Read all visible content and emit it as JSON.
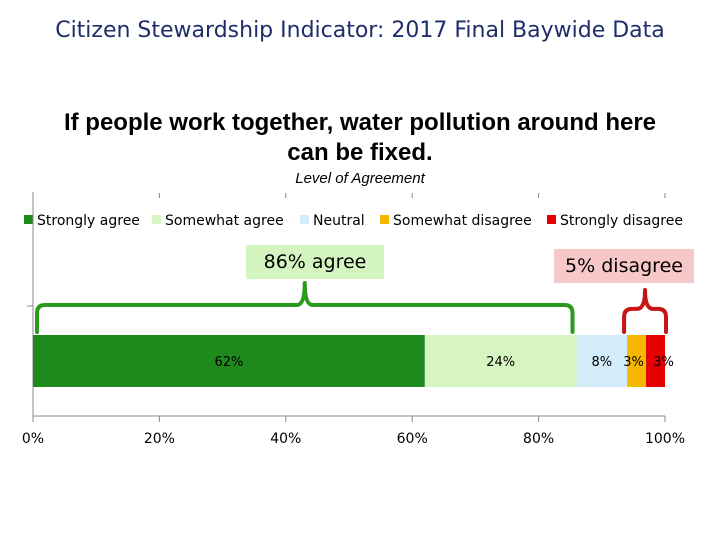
{
  "slide": {
    "title": "Citizen Stewardship Indicator: 2017 Final Baywide Data"
  },
  "chart_data": {
    "type": "bar",
    "orientation": "horizontal-stacked-100",
    "title": "If people work together, water pollution around here can be fixed.",
    "subtitle": "Level of Agreement",
    "xlim": [
      0,
      100
    ],
    "x_ticks": [
      "0%",
      "20%",
      "40%",
      "60%",
      "80%",
      "100%"
    ],
    "legend_position": "top",
    "series": [
      {
        "name": "Strongly agree",
        "value": 62,
        "label": "62%",
        "color": "#1e8a1e"
      },
      {
        "name": "Somewhat agree",
        "value": 24,
        "label": "24%",
        "color": "#d6f5c0"
      },
      {
        "name": "Neutral",
        "value": 8,
        "label": "8%",
        "color": "#d2ecfa"
      },
      {
        "name": "Somewhat disagree",
        "value": 3,
        "label": "3%",
        "color": "#f5b800"
      },
      {
        "name": "Strongly disagree",
        "value": 3,
        "label": "3%",
        "color": "#e60000"
      }
    ],
    "annotations": [
      {
        "text": "86% agree",
        "color": "#d4f5c0",
        "bracket_color": "#2a9a1e"
      },
      {
        "text": "5% disagree",
        "color": "#f8c8c8",
        "bracket_color": "#c81414"
      }
    ]
  }
}
